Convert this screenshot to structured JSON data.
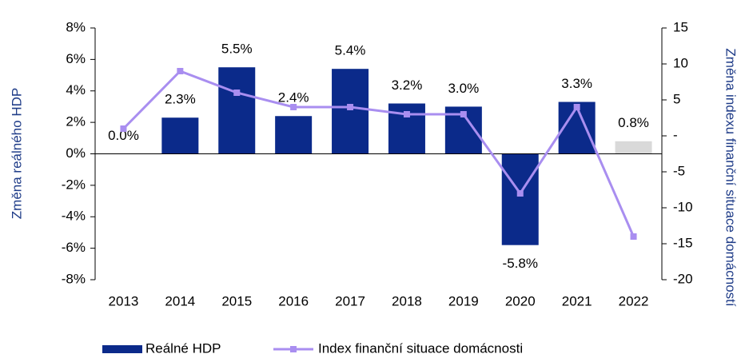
{
  "chart_data": {
    "type": "bar",
    "categories": [
      "2013",
      "2014",
      "2015",
      "2016",
      "2017",
      "2018",
      "2019",
      "2020",
      "2021",
      "2022"
    ],
    "series": [
      {
        "name": "Reálné HDP",
        "type": "bar",
        "colors": [
          "#0b2a8a",
          "#0b2a8a",
          "#0b2a8a",
          "#0b2a8a",
          "#0b2a8a",
          "#0b2a8a",
          "#0b2a8a",
          "#0b2a8a",
          "#0b2a8a",
          "#d9d9d9"
        ],
        "values": [
          0.0,
          2.3,
          5.5,
          2.4,
          5.4,
          3.2,
          3.0,
          -5.8,
          3.3,
          0.8
        ],
        "value_labels": [
          "0.0%",
          "2.3%",
          "5.5%",
          "2.4%",
          "5.4%",
          "3.2%",
          "3.0%",
          "-5.8%",
          "3.3%",
          "0.8%"
        ]
      },
      {
        "name": "Index finanční situace domácnosti",
        "type": "line",
        "axis": "y2",
        "color": "#a98ef0",
        "values": [
          1,
          9,
          6,
          4,
          4,
          3,
          3,
          -8,
          4,
          -14
        ]
      }
    ],
    "ylabel": "Změna reálného HDP",
    "y2label": "Změna indexu finanční situace domácností",
    "ylim": [
      -8,
      8
    ],
    "yticks": [
      {
        "value": -8,
        "label": "-8%"
      },
      {
        "value": -6,
        "label": "-6%"
      },
      {
        "value": -4,
        "label": "-4%"
      },
      {
        "value": -2,
        "label": "-2%"
      },
      {
        "value": 0,
        "label": "0%"
      },
      {
        "value": 2,
        "label": "2%"
      },
      {
        "value": 4,
        "label": "4%"
      },
      {
        "value": 6,
        "label": "6%"
      },
      {
        "value": 8,
        "label": "8%"
      }
    ],
    "y2lim": [
      -20,
      15
    ],
    "y2ticks": [
      -20,
      -15,
      -10,
      -5,
      {
        "value": 0,
        "label": "-"
      },
      5,
      10,
      15
    ]
  }
}
